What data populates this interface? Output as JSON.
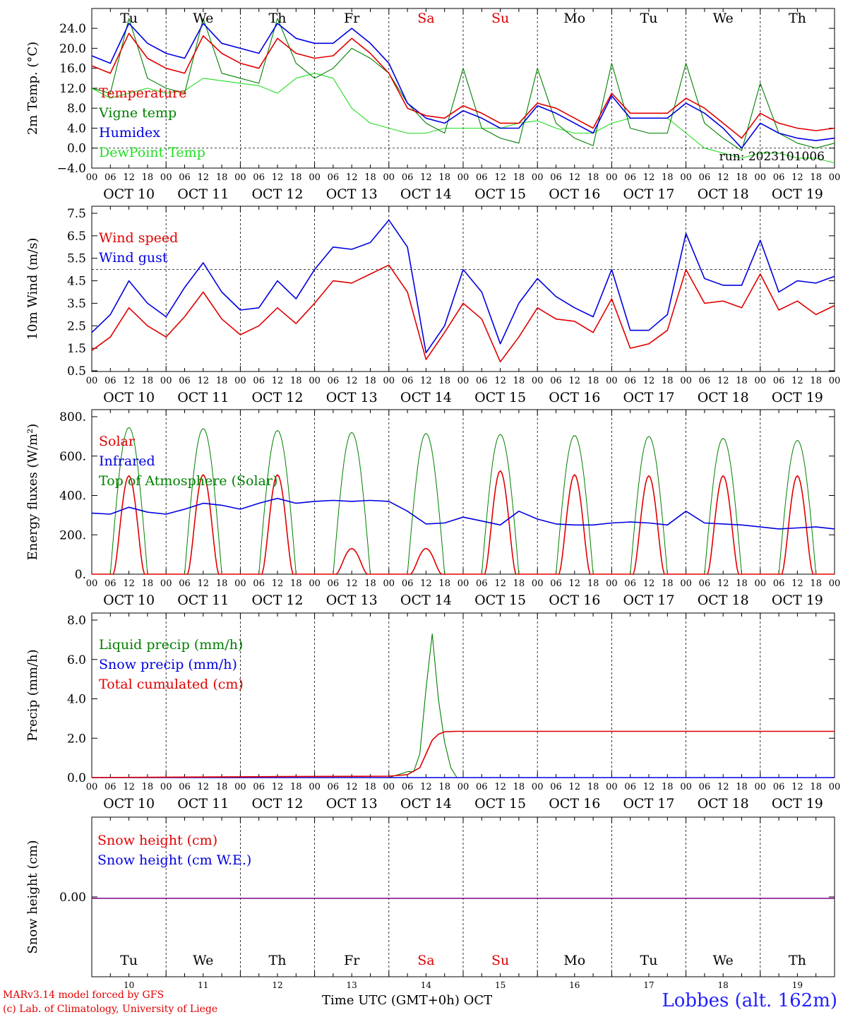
{
  "colors": {
    "red": "#e00000",
    "green": "#008000",
    "blue": "#0000e0",
    "lightgreen": "#22dd22",
    "purple": "#800080",
    "station": "#2020ff"
  },
  "days": {
    "top": [
      {
        "label": "Tu",
        "weekend": false
      },
      {
        "label": "We",
        "weekend": false
      },
      {
        "label": "Th",
        "weekend": false
      },
      {
        "label": "Fr",
        "weekend": false
      },
      {
        "label": "Sa",
        "weekend": true
      },
      {
        "label": "Su",
        "weekend": true
      },
      {
        "label": "Mo",
        "weekend": false
      },
      {
        "label": "Tu",
        "weekend": false
      },
      {
        "label": "We",
        "weekend": false
      },
      {
        "label": "Th",
        "weekend": false
      }
    ],
    "dates": [
      "OCT 10",
      "OCT 11",
      "OCT 12",
      "OCT 13",
      "OCT 14",
      "OCT 15",
      "OCT 16",
      "OCT 17",
      "OCT 18",
      "OCT 19"
    ],
    "day_numbers": [
      "10",
      "11",
      "12",
      "13",
      "14",
      "15",
      "16",
      "17",
      "18",
      "19"
    ],
    "hour_ticks": [
      "00",
      "06",
      "12",
      "18"
    ],
    "final_tick": "00"
  },
  "chart_data": [
    {
      "type": "line",
      "ylabel": "2m Temp. (°C)",
      "ylim": [
        -4,
        26
      ],
      "yticks": [
        "−4.0",
        "0.0",
        "4.0",
        "8.0",
        "12.0",
        "16.0",
        "20.0",
        "24.0"
      ],
      "ytick_values": [
        -4,
        0,
        4,
        8,
        12,
        16,
        20,
        24
      ],
      "ref_line": 0,
      "annotation": "run: 2023101006",
      "x": [
        0,
        6,
        12,
        18,
        24,
        30,
        36,
        42,
        48,
        54,
        60,
        66,
        72,
        78,
        84,
        90,
        96,
        102,
        108,
        114,
        120,
        126,
        132,
        138,
        144,
        150,
        156,
        162,
        168,
        174,
        180,
        186,
        192,
        198,
        204,
        210,
        216,
        222,
        228,
        234,
        240
      ],
      "series": [
        {
          "name": "Temperature",
          "color": "red",
          "values": [
            16.5,
            15,
            23,
            18,
            16,
            15,
            22.5,
            19,
            17,
            16,
            22,
            19,
            18,
            18.5,
            22,
            19,
            15,
            8,
            6.5,
            6,
            8.5,
            7,
            5,
            5,
            9,
            8,
            6,
            4,
            11,
            7,
            7,
            7,
            10,
            8,
            5,
            2,
            7,
            5,
            4,
            3.5,
            4
          ]
        },
        {
          "name": "Vigne temp",
          "color": "green",
          "values": [
            12,
            11,
            26,
            14,
            12,
            11,
            26,
            15,
            14,
            13,
            26,
            17,
            14,
            16,
            20,
            18,
            15,
            9,
            5,
            3,
            16,
            4,
            2,
            1,
            16,
            5,
            2,
            0.5,
            17,
            4,
            3,
            3,
            17,
            5,
            2,
            -0.5,
            13,
            3,
            1,
            0,
            1
          ]
        },
        {
          "name": "Humidex",
          "color": "blue",
          "values": [
            18.5,
            17,
            25,
            21,
            19,
            18,
            25,
            21,
            20,
            19,
            25,
            22,
            21,
            21,
            24,
            21,
            17,
            9,
            6,
            5,
            7.5,
            6,
            4,
            4,
            8.5,
            7,
            5,
            3,
            10.5,
            6,
            6,
            6,
            9,
            7,
            4,
            0,
            5,
            3,
            2,
            1.5,
            2
          ]
        },
        {
          "name": "DewPoint Temp",
          "color": "lightgreen",
          "values": [
            12,
            10,
            11,
            12,
            11,
            11.5,
            14,
            13.5,
            13,
            12.5,
            11,
            14,
            15,
            14,
            8,
            5,
            4,
            3,
            3,
            4,
            4,
            4,
            4,
            5,
            5.5,
            4,
            3,
            3,
            5,
            6,
            6,
            6,
            3,
            0,
            -1,
            -2,
            -1,
            -1,
            -2,
            -2,
            -3
          ]
        }
      ]
    },
    {
      "type": "line",
      "ylabel": "10m Wind (m/s)",
      "ylim": [
        0.5,
        7.5
      ],
      "yticks": [
        "0.5",
        "1.5",
        "2.5",
        "3.5",
        "4.5",
        "5.5",
        "6.5",
        "7.5"
      ],
      "ytick_values": [
        0.5,
        1.5,
        2.5,
        3.5,
        4.5,
        5.5,
        6.5,
        7.5
      ],
      "ref_line": 5,
      "x": [
        0,
        6,
        12,
        18,
        24,
        30,
        36,
        42,
        48,
        54,
        60,
        66,
        72,
        78,
        84,
        90,
        96,
        102,
        108,
        114,
        120,
        126,
        132,
        138,
        144,
        150,
        156,
        162,
        168,
        174,
        180,
        186,
        192,
        198,
        204,
        210,
        216,
        222,
        228,
        234,
        240
      ],
      "series": [
        {
          "name": "Wind speed",
          "color": "red",
          "values": [
            1.4,
            2,
            3.3,
            2.5,
            2,
            2.9,
            4,
            2.8,
            2.1,
            2.5,
            3.3,
            2.6,
            3.5,
            4.5,
            4.4,
            4.8,
            5.2,
            4,
            1,
            2.2,
            3.5,
            2.8,
            0.9,
            2,
            3.3,
            2.8,
            2.7,
            2.2,
            3.7,
            1.5,
            1.7,
            2.3,
            5,
            3.5,
            3.6,
            3.3,
            4.8,
            3.2,
            3.6,
            3,
            3.4
          ]
        },
        {
          "name": "Wind gust",
          "color": "blue",
          "values": [
            2.2,
            3,
            4.5,
            3.5,
            2.9,
            4.2,
            5.3,
            4,
            3.2,
            3.3,
            4.5,
            3.7,
            5,
            6,
            5.9,
            6.2,
            7.2,
            6,
            1.3,
            2.5,
            5,
            4,
            1.7,
            3.5,
            4.6,
            3.8,
            3.3,
            2.9,
            5,
            2.3,
            2.3,
            3,
            6.6,
            4.6,
            4.3,
            4.3,
            6.3,
            4,
            4.5,
            4.4,
            4.7
          ]
        }
      ]
    },
    {
      "type": "line",
      "ylabel": "Energy fluxes (W/m²)",
      "ylim": [
        0,
        800
      ],
      "yticks": [
        "0.",
        "200.",
        "400.",
        "600.",
        "800."
      ],
      "ytick_values": [
        0,
        200,
        400,
        600,
        800
      ],
      "top_of_atmosphere_peaks": [
        745,
        740,
        730,
        720,
        715,
        710,
        705,
        700,
        690,
        680
      ],
      "solar_peaks": [
        500,
        505,
        505,
        130,
        130,
        525,
        505,
        500,
        500,
        500
      ],
      "series": [
        {
          "name": "Solar",
          "color": "red"
        },
        {
          "name": "Infrared",
          "color": "blue",
          "x": [
            0,
            6,
            12,
            18,
            24,
            30,
            36,
            42,
            48,
            54,
            60,
            66,
            72,
            78,
            84,
            90,
            96,
            102,
            108,
            114,
            120,
            126,
            132,
            138,
            144,
            150,
            156,
            162,
            168,
            174,
            180,
            186,
            192,
            198,
            204,
            210,
            216,
            222,
            228,
            234,
            240
          ],
          "values": [
            310,
            305,
            340,
            315,
            305,
            330,
            360,
            350,
            330,
            360,
            385,
            360,
            370,
            375,
            370,
            375,
            370,
            320,
            255,
            260,
            290,
            270,
            250,
            320,
            280,
            255,
            250,
            250,
            260,
            265,
            260,
            250,
            320,
            260,
            255,
            250,
            240,
            230,
            235,
            240,
            230
          ]
        },
        {
          "name": "Top of Atmosphere (Solar)",
          "color": "green"
        }
      ]
    },
    {
      "type": "line",
      "ylabel": "Precip (mm/h)",
      "ylim": [
        0,
        8
      ],
      "yticks": [
        "0.0",
        "2.0",
        "4.0",
        "6.0",
        "8.0"
      ],
      "ytick_values": [
        0,
        2,
        4,
        6,
        8
      ],
      "series": [
        {
          "name": "Liquid precip (mm/h)",
          "color": "green",
          "x": [
            0,
            60,
            96,
            102,
            104,
            106,
            108,
            110,
            112,
            114,
            116,
            118,
            120,
            240
          ],
          "values": [
            0,
            0,
            0,
            0.3,
            0.3,
            1.2,
            4.5,
            7.3,
            4,
            1.8,
            0.5,
            0,
            0,
            0
          ]
        },
        {
          "name": "Snow precip (mm/h)",
          "color": "blue",
          "x": [
            0,
            240
          ],
          "values": [
            0,
            0
          ]
        },
        {
          "name": "Total cumulated (cm)",
          "color": "red",
          "x": [
            0,
            60,
            96,
            102,
            106,
            108,
            110,
            112,
            114,
            118,
            240
          ],
          "values": [
            0,
            0.05,
            0.07,
            0.15,
            0.5,
            1.2,
            1.9,
            2.2,
            2.33,
            2.35,
            2.35
          ]
        }
      ]
    },
    {
      "type": "line",
      "ylabel": "Snow height (cm)",
      "yticks": [
        "0.00"
      ],
      "ytick_values": [
        0
      ],
      "series": [
        {
          "name": "Snow height (cm)",
          "color": "red",
          "x": [
            0,
            240
          ],
          "values": [
            0,
            0
          ]
        },
        {
          "name": "Snow height (cm W.E.)",
          "color": "blue",
          "x": [
            0,
            240
          ],
          "values": [
            0,
            0
          ]
        }
      ]
    }
  ],
  "footer": {
    "credit_line1": "MARv3.14 model forced by GFS",
    "credit_line2": "(c) Lab. of Climatology, University of Liege",
    "time_label": "Time UTC (GMT+0h) OCT",
    "station": "Lobbes (alt. 162m)"
  }
}
